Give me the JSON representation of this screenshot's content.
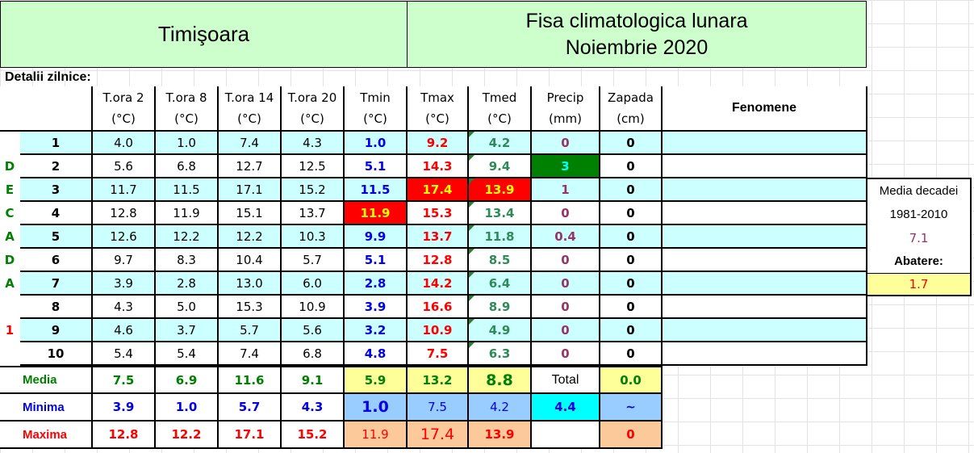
{
  "header": {
    "city": "Timişoara",
    "title_line1": "Fisa climatologica lunara",
    "title_line2": "Noiembrie 2020"
  },
  "section_label": "Detalii zilnice:",
  "columns": [
    {
      "name": "T.ora 2",
      "unit": "(°C)"
    },
    {
      "name": "T.ora 8",
      "unit": "(°C)"
    },
    {
      "name": "T.ora 14",
      "unit": "(°C)"
    },
    {
      "name": "T.ora 20",
      "unit": "(°C)"
    },
    {
      "name": "Tmin",
      "unit": "(°C)"
    },
    {
      "name": "Tmax",
      "unit": "(°C)"
    },
    {
      "name": "Tmed",
      "unit": "(°C)"
    },
    {
      "name": "Precip",
      "unit": "(mm)"
    },
    {
      "name": "Zapada",
      "unit": "(cm)"
    }
  ],
  "fenomene_header": "Fenomene",
  "side_letters": [
    "D",
    "E",
    "C",
    "A",
    "D",
    "A",
    "1"
  ],
  "rows": [
    {
      "day": "1",
      "t2": "4.0",
      "t8": "1.0",
      "t14": "7.4",
      "t20": "4.3",
      "tmin": "1.0",
      "tmax": "9.2",
      "tmed": "4.2",
      "precip": "0",
      "zapada": "0"
    },
    {
      "day": "2",
      "t2": "5.6",
      "t8": "6.8",
      "t14": "12.7",
      "t20": "12.5",
      "tmin": "5.1",
      "tmax": "14.3",
      "tmed": "9.4",
      "precip": "3",
      "zapada": "0"
    },
    {
      "day": "3",
      "t2": "11.7",
      "t8": "11.5",
      "t14": "17.1",
      "t20": "15.2",
      "tmin": "11.5",
      "tmax": "17.4",
      "tmed": "13.9",
      "precip": "1",
      "zapada": "0"
    },
    {
      "day": "4",
      "t2": "12.8",
      "t8": "11.9",
      "t14": "15.1",
      "t20": "13.7",
      "tmin": "11.9",
      "tmax": "15.3",
      "tmed": "13.4",
      "precip": "0",
      "zapada": "0"
    },
    {
      "day": "5",
      "t2": "12.6",
      "t8": "12.2",
      "t14": "12.2",
      "t20": "10.3",
      "tmin": "9.9",
      "tmax": "13.7",
      "tmed": "11.8",
      "precip": "0.4",
      "zapada": "0"
    },
    {
      "day": "6",
      "t2": "9.7",
      "t8": "8.3",
      "t14": "10.4",
      "t20": "5.7",
      "tmin": "5.1",
      "tmax": "12.8",
      "tmed": "8.5",
      "precip": "0",
      "zapada": "0"
    },
    {
      "day": "7",
      "t2": "3.9",
      "t8": "2.8",
      "t14": "13.0",
      "t20": "6.0",
      "tmin": "2.8",
      "tmax": "14.2",
      "tmed": "6.4",
      "precip": "0",
      "zapada": "0"
    },
    {
      "day": "8",
      "t2": "4.3",
      "t8": "5.0",
      "t14": "15.3",
      "t20": "10.9",
      "tmin": "3.9",
      "tmax": "16.6",
      "tmed": "8.9",
      "precip": "0",
      "zapada": "0"
    },
    {
      "day": "9",
      "t2": "4.6",
      "t8": "3.7",
      "t14": "5.7",
      "t20": "5.6",
      "tmin": "3.2",
      "tmax": "10.9",
      "tmed": "4.9",
      "precip": "0",
      "zapada": "0"
    },
    {
      "day": "10",
      "t2": "5.4",
      "t8": "5.4",
      "t14": "7.4",
      "t20": "6.8",
      "tmin": "4.8",
      "tmax": "7.5",
      "tmed": "6.3",
      "precip": "0",
      "zapada": "0"
    }
  ],
  "summary": {
    "media": {
      "label": "Media",
      "t2": "7.5",
      "t8": "6.9",
      "t14": "11.6",
      "t20": "9.1",
      "tmin": "5.9",
      "tmax": "13.2",
      "tmed": "8.8",
      "precip": "Total",
      "zapada": "0.0"
    },
    "minima": {
      "label": "Minima",
      "t2": "3.9",
      "t8": "1.0",
      "t14": "5.7",
      "t20": "4.3",
      "tmin": "1.0",
      "tmax": "7.5",
      "tmed": "4.2",
      "precip": "4.4",
      "zapada": "~"
    },
    "maxima": {
      "label": "Maxima",
      "t2": "12.8",
      "t8": "12.2",
      "t14": "17.1",
      "t20": "15.2",
      "tmin": "11.9",
      "tmax": "17.4",
      "tmed": "13.9",
      "precip": "",
      "zapada": "0"
    }
  },
  "decade_box": {
    "line1": "Media decadei",
    "line2": "1981-2010",
    "value": "7.1",
    "abatere_label": "Abatere:",
    "abatere_value": "1.7"
  },
  "colors": {
    "header_bg": "#ccffcc",
    "row_cyan": "#ccffff",
    "highlight_red": "#ff0000",
    "highlight_green": "#008000",
    "yellow": "#ffff99",
    "blue_cell": "#99ccff",
    "orange_cell": "#fcc99a",
    "bright_cyan": "#00ffff"
  }
}
